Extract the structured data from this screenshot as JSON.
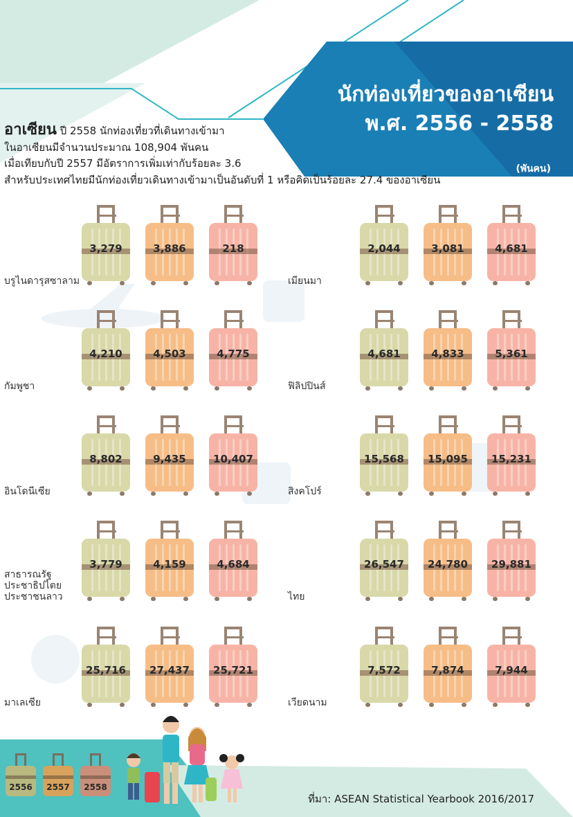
{
  "title": {
    "line1": "นักท่องเที่ยวของอาเซียน",
    "line2": "พ.ศ. 2556 - 2558",
    "unit": "(พันคน)"
  },
  "intro": {
    "asean_word": "อาเซียน",
    "line1_rest": " ปี 2558 นักท่องเที่ยวที่เดินทางเข้ามา",
    "line2": "ในอาเซียนมีจำนวนประมาณ 108,904 พันคน",
    "line3": "เมื่อเทียบกับปี 2557 มีอัตราการเพิ่มเท่ากับร้อยละ 3.6",
    "line4": "สำหรับประเทศไทยมีนักท่องเที่ยวเดินทางเข้ามาเป็นอันดับที่ 1 หรือคิดเป็นร้อยละ 27.4 ของอาเซียน"
  },
  "colors": {
    "c2556": "#d9d8a9",
    "c2557": "#f6bd87",
    "c2558": "#f7b4a6",
    "header_blue": "#1a7fb5",
    "teal_light": "#d4ebe4"
  },
  "chart_data": {
    "type": "table",
    "series_names": [
      "2556",
      "2557",
      "2558"
    ],
    "unit": "(พันคน)",
    "countries": [
      {
        "name": "บรูไนดารุสซาลาม",
        "values": [
          "3,279",
          "3,886",
          "218"
        ]
      },
      {
        "name": "เมียนมา",
        "values": [
          "2,044",
          "3,081",
          "4,681"
        ]
      },
      {
        "name": "กัมพูชา",
        "values": [
          "4,210",
          "4,503",
          "4,775"
        ]
      },
      {
        "name": "ฟิลิปปินส์",
        "values": [
          "4,681",
          "4,833",
          "5,361"
        ]
      },
      {
        "name": "อินโดนีเซีย",
        "values": [
          "8,802",
          "9,435",
          "10,407"
        ]
      },
      {
        "name": "สิงคโปร์",
        "values": [
          "15,568",
          "15,095",
          "15,231"
        ]
      },
      {
        "name": "สาธารณรัฐ\nประชาธิปไตย\nประชาชนลาว",
        "values": [
          "3,779",
          "4,159",
          "4,684"
        ]
      },
      {
        "name": "ไทย",
        "values": [
          "26,547",
          "24,780",
          "29,881"
        ]
      },
      {
        "name": "มาเลเซีย",
        "values": [
          "25,716",
          "27,437",
          "25,721"
        ]
      },
      {
        "name": "เวียดนาม",
        "values": [
          "7,572",
          "7,874",
          "7,944"
        ]
      }
    ]
  },
  "legend": [
    "2556",
    "2557",
    "2558"
  ],
  "source": "ที่มา: ASEAN Statistical Yearbook 2016/2017"
}
